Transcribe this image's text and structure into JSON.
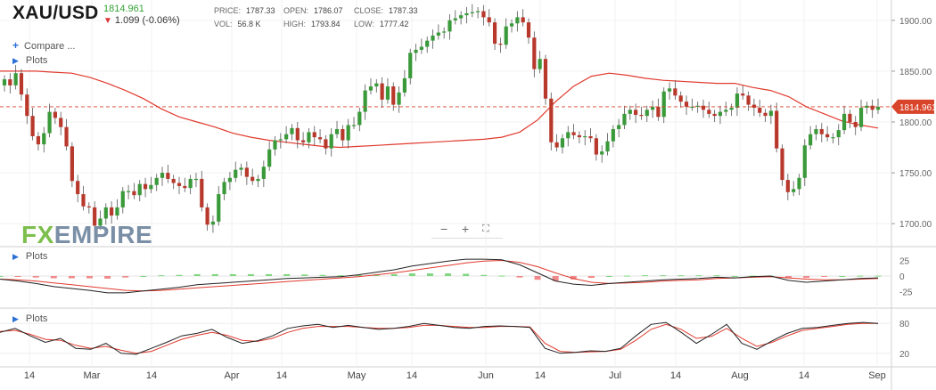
{
  "header": {
    "symbol": "XAU/USD",
    "last_price": "1814.961",
    "change": "1.099 (-0.06%)",
    "price_label": "PRICE:",
    "price_value": "1787.33",
    "open_label": "OPEN:",
    "open_value": "1786.07",
    "close_label": "CLOSE:",
    "close_value": "1787.33",
    "vol_label": "VOL:",
    "vol_value": "56.8 K",
    "high_label": "HIGH:",
    "high_value": "1793.84",
    "low_label": "LOW:",
    "low_value": "1777.42"
  },
  "menu": {
    "compare": "Compare ...",
    "plots_main": "Plots",
    "plots_macd": "Plots",
    "plots_stoch": "Plots"
  },
  "logo": {
    "fx": "FX",
    "rest": "EMPIRE"
  },
  "zoom": {
    "minus": "−",
    "plus": "+",
    "fit": "⛶"
  },
  "colors": {
    "up": "#3a9a3a",
    "down": "#b8382c",
    "ma": "#e03a2e",
    "macd": "#222222",
    "signal": "#e03a2e",
    "hist_up": "#7fd67f",
    "hist_down": "#f08a8a",
    "price_tag": "#d9452a"
  },
  "chart_data": {
    "type": "candlestick",
    "price_axis": {
      "ticks": [
        1700,
        1750,
        1800,
        1850,
        1900
      ],
      "tick_labels": [
        "1700.00",
        "1750.00",
        "1800.00",
        "1850.00",
        "1900.00"
      ],
      "range": [
        1680,
        1920
      ]
    },
    "current_price_tag": "1814.961",
    "x_tick_labels": [
      "14",
      "Mar",
      "14",
      "Apr",
      "14",
      "May",
      "14",
      "Jun",
      "14",
      "Jul",
      "14",
      "Aug",
      "14",
      "Sep"
    ],
    "macd_axis": {
      "ticks": [
        25,
        0,
        -25
      ],
      "tick_labels": [
        "25",
        "0",
        "-25"
      ],
      "range": [
        -40,
        40
      ]
    },
    "stoch_axis": {
      "ticks": [
        80,
        20
      ],
      "tick_labels": [
        "80",
        "20"
      ],
      "range": [
        0,
        100
      ]
    },
    "candles_close": [
      1842,
      1836,
      1848,
      1827,
      1806,
      1786,
      1778,
      1789,
      1810,
      1804,
      1795,
      1776,
      1742,
      1729,
      1717,
      1716,
      1698,
      1705,
      1716,
      1708,
      1716,
      1732,
      1732,
      1728,
      1739,
      1734,
      1738,
      1745,
      1750,
      1744,
      1740,
      1737,
      1735,
      1744,
      1744,
      1716,
      1699,
      1702,
      1729,
      1741,
      1745,
      1753,
      1755,
      1746,
      1742,
      1744,
      1756,
      1773,
      1782,
      1783,
      1788,
      1794,
      1782,
      1780,
      1790,
      1785,
      1783,
      1774,
      1788,
      1793,
      1782,
      1797,
      1797,
      1810,
      1831,
      1835,
      1838,
      1822,
      1835,
      1817,
      1829,
      1843,
      1868,
      1871,
      1874,
      1880,
      1885,
      1888,
      1889,
      1900,
      1902,
      1905,
      1907,
      1908,
      1909,
      1903,
      1898,
      1877,
      1876,
      1894,
      1897,
      1903,
      1898,
      1883,
      1852,
      1862,
      1823,
      1780,
      1775,
      1784,
      1790,
      1787,
      1785,
      1786,
      1784,
      1768,
      1771,
      1781,
      1793,
      1797,
      1808,
      1812,
      1807,
      1806,
      1812,
      1815,
      1805,
      1830,
      1833,
      1826,
      1820,
      1815,
      1815,
      1816,
      1812,
      1808,
      1806,
      1810,
      1812,
      1814,
      1828,
      1826,
      1817,
      1814,
      1809,
      1806,
      1811,
      1774,
      1743,
      1731,
      1734,
      1745,
      1777,
      1788,
      1793,
      1788,
      1785,
      1785,
      1792,
      1808,
      1800,
      1795,
      1814,
      1816,
      1812,
      1815
    ],
    "ma_line": [
      1850,
      1850,
      1850,
      1849,
      1848,
      1844,
      1838,
      1831,
      1823,
      1813,
      1805,
      1800,
      1795,
      1789,
      1785,
      1782,
      1780,
      1778,
      1776,
      1775,
      1776,
      1777,
      1778,
      1779,
      1780,
      1781,
      1782,
      1783,
      1785,
      1790,
      1802,
      1820,
      1835,
      1845,
      1848,
      1846,
      1843,
      1841,
      1840,
      1839,
      1838,
      1838,
      1834,
      1831,
      1825,
      1815,
      1808,
      1801,
      1797,
      1794
    ],
    "macd": [
      -5,
      -8,
      -12,
      -17,
      -20,
      -23,
      -27,
      -27,
      -24,
      -21,
      -18,
      -14,
      -12,
      -10,
      -8,
      -6,
      -4,
      -3,
      -2,
      -1,
      2,
      6,
      10,
      16,
      20,
      24,
      27,
      27,
      26,
      18,
      5,
      -8,
      -13,
      -15,
      -12,
      -10,
      -8,
      -6,
      -5,
      -4,
      -2,
      -3,
      -1,
      0,
      -7,
      -10,
      -8,
      -6,
      -4,
      -3
    ],
    "macd_signal": [
      -5,
      -6,
      -8,
      -11,
      -14,
      -17,
      -20,
      -23,
      -24,
      -23,
      -21,
      -19,
      -17,
      -15,
      -13,
      -11,
      -9,
      -7,
      -5,
      -3,
      -1,
      2,
      5,
      9,
      13,
      17,
      21,
      24,
      25,
      22,
      15,
      5,
      -4,
      -10,
      -12,
      -11,
      -10,
      -8,
      -7,
      -6,
      -4,
      -3,
      -2,
      -1,
      -3,
      -5,
      -6,
      -6,
      -5,
      -4
    ],
    "stoch_k": [
      62,
      70,
      55,
      42,
      50,
      30,
      28,
      40,
      20,
      18,
      30,
      42,
      55,
      60,
      68,
      52,
      40,
      45,
      55,
      70,
      75,
      78,
      72,
      76,
      72,
      68,
      70,
      74,
      80,
      76,
      72,
      70,
      74,
      75,
      74,
      72,
      30,
      20,
      22,
      25,
      24,
      30,
      55,
      78,
      82,
      62,
      40,
      58,
      78,
      40,
      28,
      45,
      60,
      70,
      72,
      76,
      80,
      82,
      80
    ],
    "stoch_d": [
      64,
      66,
      58,
      48,
      46,
      36,
      30,
      34,
      26,
      20,
      24,
      36,
      48,
      56,
      62,
      56,
      46,
      44,
      50,
      62,
      70,
      74,
      74,
      74,
      72,
      70,
      70,
      72,
      76,
      76,
      74,
      72,
      72,
      74,
      74,
      73,
      40,
      24,
      22,
      23,
      24,
      28,
      46,
      68,
      78,
      68,
      50,
      54,
      70,
      50,
      34,
      42,
      55,
      66,
      70,
      74,
      78,
      80,
      80
    ]
  }
}
